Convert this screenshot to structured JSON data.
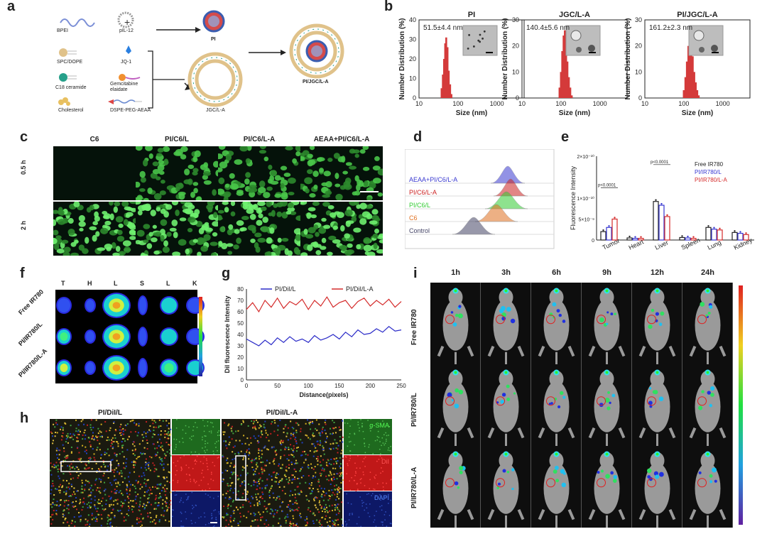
{
  "panels": {
    "a": "a",
    "b": "b",
    "c": "c",
    "d": "d",
    "e": "e",
    "f": "f",
    "g": "g",
    "h": "h",
    "i": "i"
  },
  "a": {
    "bpei": "BPEI",
    "pil12": "pIL-12",
    "pi": "PI",
    "spc": "SPC/DOPE",
    "jq1": "JQ-1",
    "c18": "C18 ceramide",
    "gem": "Gemcitabine elaidate",
    "chol": "Cholesterol",
    "dspe": "DSPE-PEG-AEAA",
    "jgc": "JGC/L-A",
    "pijgc": "PI/JGC/L-A"
  },
  "b": {
    "ylabel": "Number Distribution (%)",
    "xlabel": "Size (nm)",
    "charts": [
      {
        "title": "PI",
        "size": "51.5±4.4 nm"
      },
      {
        "title": "JGC/L-A",
        "size": "140.4±5.6 nm"
      },
      {
        "title": "PI/JGC/L-A",
        "size": "161.2±2.3 nm"
      }
    ]
  },
  "c": {
    "cols": [
      "C6",
      "PI/C6/L",
      "PI/C6/L-A",
      "AEAA+PI/C6/L-A"
    ],
    "rows": [
      "0.5 h",
      "2 h"
    ]
  },
  "d": {
    "labels": [
      "AEAA+PI/C6/L-A",
      "PI/C6/L-A",
      "PI/C6/L",
      "C6",
      "Control"
    ],
    "colors": [
      "#3a3ad0",
      "#cc2222",
      "#33cc33",
      "#e07020",
      "#444466"
    ]
  },
  "e": {
    "ylabel": "Fluorescence Intensity",
    "ticks": [
      "2×10⁻¹⁰",
      "1×10⁻¹⁰",
      "5×10⁻⁹",
      "0"
    ],
    "categories": [
      "Tumor",
      "Heart",
      "Liver",
      "Spleen",
      "Lung",
      "Kidney"
    ],
    "legend": [
      "Free IR780",
      "PI/IR780/L",
      "PI/IR780/L-A"
    ],
    "pvals": [
      "p<0.0001",
      "p<0.0001"
    ]
  },
  "f": {
    "cols": [
      "T",
      "H",
      "L",
      "S",
      "L",
      "K"
    ],
    "rows": [
      "Free IR780",
      "PI/IR780/L",
      "PI/IR780/L-A"
    ]
  },
  "g": {
    "ylabel": "DiI fluorescence Intensity",
    "xlabel": "Distance(pixels)",
    "legend": [
      "PI/DiI/L",
      "PI/DiI/L-A"
    ],
    "yticks": [
      "80",
      "70",
      "60",
      "50",
      "40",
      "30",
      "20",
      "10",
      "0"
    ],
    "xticks": [
      "0",
      "50",
      "100",
      "150",
      "200",
      "250"
    ]
  },
  "h": {
    "titles": [
      "PI/DiI/L",
      "PI/DiI/L-A"
    ],
    "channels": [
      "α-SMA",
      "DiI",
      "DAPI"
    ]
  },
  "i": {
    "times": [
      "1h",
      "3h",
      "6h",
      "9h",
      "12h",
      "24h"
    ],
    "rows": [
      "Free IR780",
      "PI/IR780/L",
      "PI/IR780/L-A"
    ]
  },
  "chart_data": [
    {
      "type": "bar",
      "title": "PI",
      "xlabel": "Size (nm)",
      "ylabel": "Number Distribution (%)",
      "xscale": "log",
      "xlim": [
        10,
        5000
      ],
      "ylim": [
        0,
        40
      ],
      "x": [
        38,
        41,
        44,
        47,
        50,
        54,
        58,
        63,
        68
      ],
      "values": [
        5,
        12,
        20,
        28,
        31,
        26,
        14,
        7,
        2
      ]
    },
    {
      "type": "bar",
      "title": "JGC/L-A",
      "xlabel": "Size (nm)",
      "ylabel": "Number Distribution (%)",
      "xscale": "log",
      "xlim": [
        10,
        5000
      ],
      "ylim": [
        0,
        30
      ],
      "x": [
        92,
        100,
        108,
        117,
        126,
        136,
        147,
        160,
        174,
        190
      ],
      "values": [
        4,
        10,
        18,
        24,
        26,
        22,
        14,
        8,
        4,
        1
      ]
    },
    {
      "type": "bar",
      "title": "PI/JGC/L-A",
      "xlabel": "Size (nm)",
      "ylabel": "Number Distribution (%)",
      "xscale": "log",
      "xlim": [
        10,
        5000
      ],
      "ylim": [
        0,
        30
      ],
      "x": [
        100,
        110,
        120,
        131,
        143,
        156,
        170,
        186,
        203,
        222,
        242
      ],
      "values": [
        3,
        8,
        14,
        20,
        23,
        21,
        16,
        10,
        6,
        3,
        1
      ]
    },
    {
      "type": "bar",
      "title": "",
      "ylabel": "Fluorescence Intensity",
      "categories": [
        "Tumor",
        "Heart",
        "Liver",
        "Spleen",
        "Lung",
        "Kidney"
      ],
      "series": [
        {
          "name": "Free IR780",
          "values": [
            2.0,
            0.5,
            9.2,
            0.6,
            3.0,
            1.8
          ],
          "color": "#222222"
        },
        {
          "name": "PI/IR780/L",
          "values": [
            3.0,
            0.4,
            8.3,
            0.5,
            2.6,
            1.6
          ],
          "color": "#3535d0"
        },
        {
          "name": "PI/IR780/L-A",
          "values": [
            5.0,
            0.4,
            5.6,
            0.4,
            2.4,
            1.3
          ],
          "color": "#d42a2a"
        }
      ],
      "ylim": [
        0,
        20
      ]
    },
    {
      "type": "line",
      "title": "",
      "xlabel": "Distance(pixels)",
      "ylabel": "DiI fluorescence Intensity",
      "xlim": [
        0,
        250
      ],
      "ylim": [
        0,
        80
      ],
      "series": [
        {
          "name": "PI/DiI/L",
          "color": "#2b2bc8",
          "x": [
            0,
            10,
            20,
            30,
            40,
            50,
            60,
            70,
            80,
            90,
            100,
            110,
            120,
            130,
            140,
            150,
            160,
            170,
            180,
            190,
            200,
            210,
            220,
            230,
            240,
            250
          ],
          "values": [
            36,
            33,
            30,
            35,
            31,
            37,
            33,
            38,
            34,
            36,
            33,
            39,
            35,
            37,
            40,
            36,
            42,
            38,
            44,
            40,
            41,
            45,
            42,
            47,
            43,
            44
          ]
        },
        {
          "name": "PI/DiI/L-A",
          "color": "#d42a2a",
          "x": [
            0,
            10,
            20,
            30,
            40,
            50,
            60,
            70,
            80,
            90,
            100,
            110,
            120,
            130,
            140,
            150,
            160,
            170,
            180,
            190,
            200,
            210,
            220,
            230,
            240,
            250
          ],
          "values": [
            62,
            68,
            60,
            70,
            64,
            72,
            63,
            69,
            66,
            71,
            62,
            70,
            65,
            73,
            64,
            68,
            70,
            63,
            69,
            72,
            65,
            70,
            66,
            71,
            64,
            69
          ]
        }
      ]
    }
  ]
}
